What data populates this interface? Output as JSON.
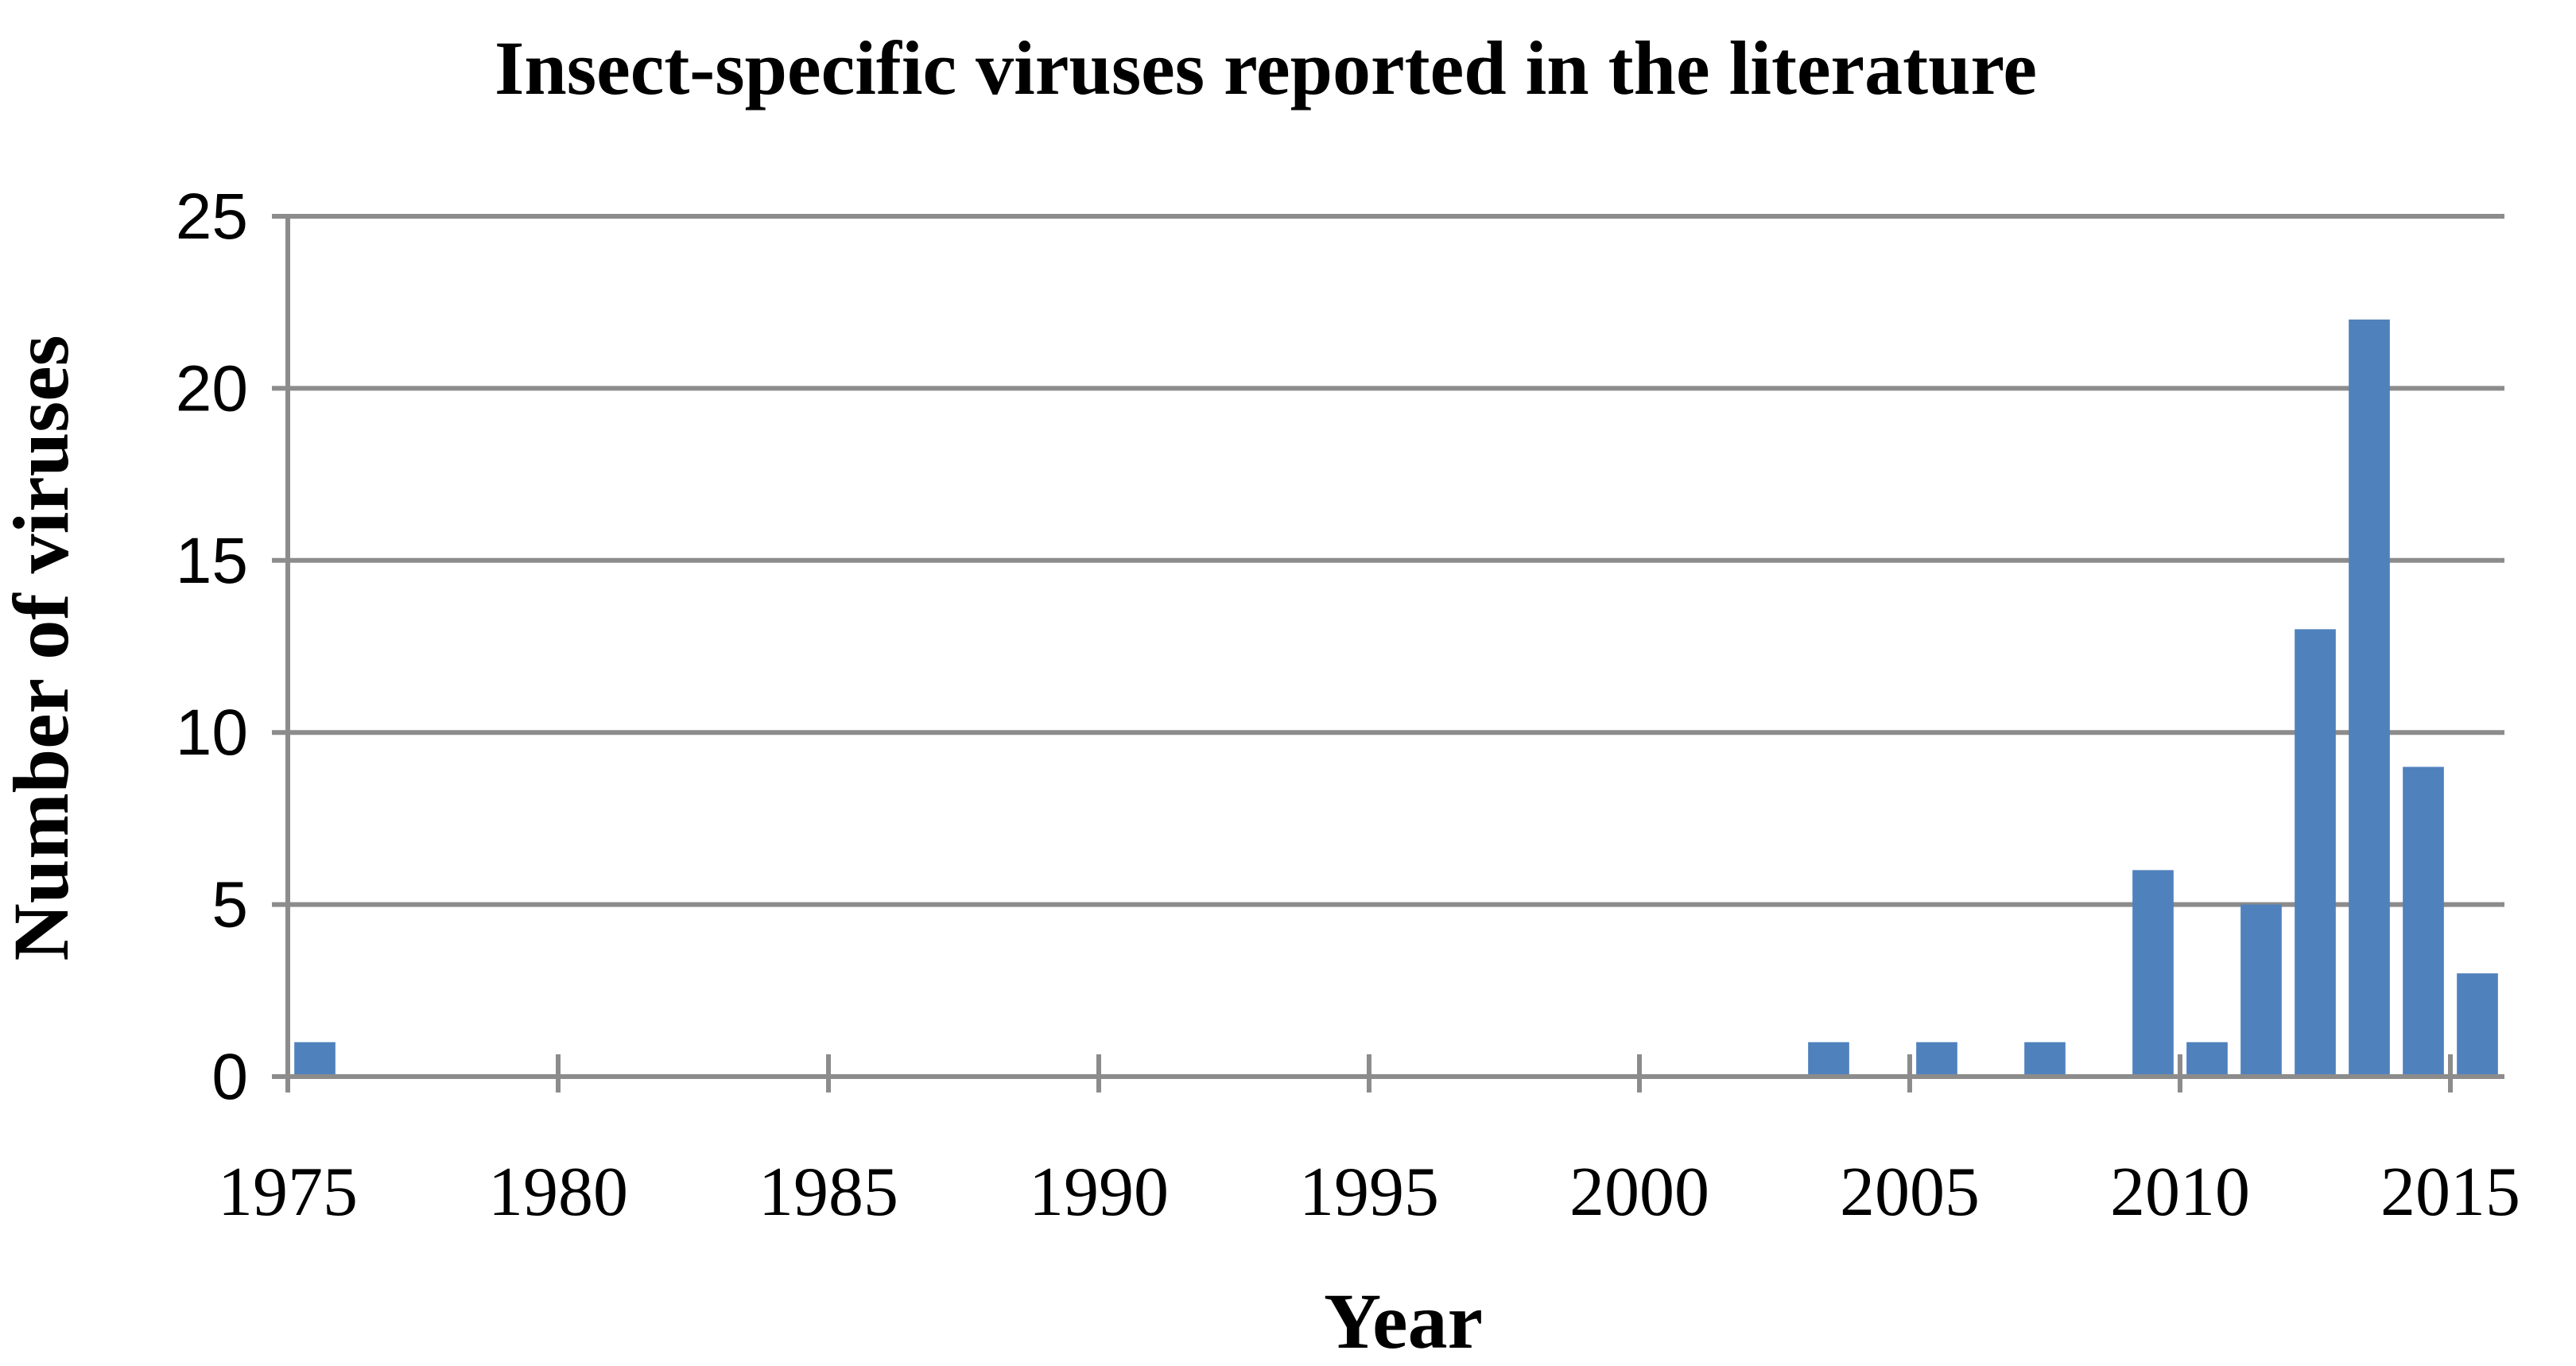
{
  "chart_data": {
    "type": "bar",
    "title": "Insect-specific viruses reported in the literature",
    "xlabel": "Year",
    "ylabel": "Number of viruses",
    "xlim": [
      1975,
      2016
    ],
    "ylim": [
      0,
      25
    ],
    "yticks": [
      0,
      5,
      10,
      15,
      20,
      25
    ],
    "xticks": [
      "1975",
      "1980",
      "1985",
      "1990",
      "1995",
      "2000",
      "2005",
      "2010",
      "2015"
    ],
    "grid": "horizontal",
    "bar_color": "#4f81bd",
    "grid_color": "#8c8c8c",
    "x": [
      1975,
      2003,
      2005,
      2007,
      2009,
      2010,
      2011,
      2012,
      2013,
      2014,
      2015
    ],
    "values": [
      1,
      1,
      1,
      1,
      6,
      1,
      5,
      13,
      22,
      9,
      3
    ]
  }
}
